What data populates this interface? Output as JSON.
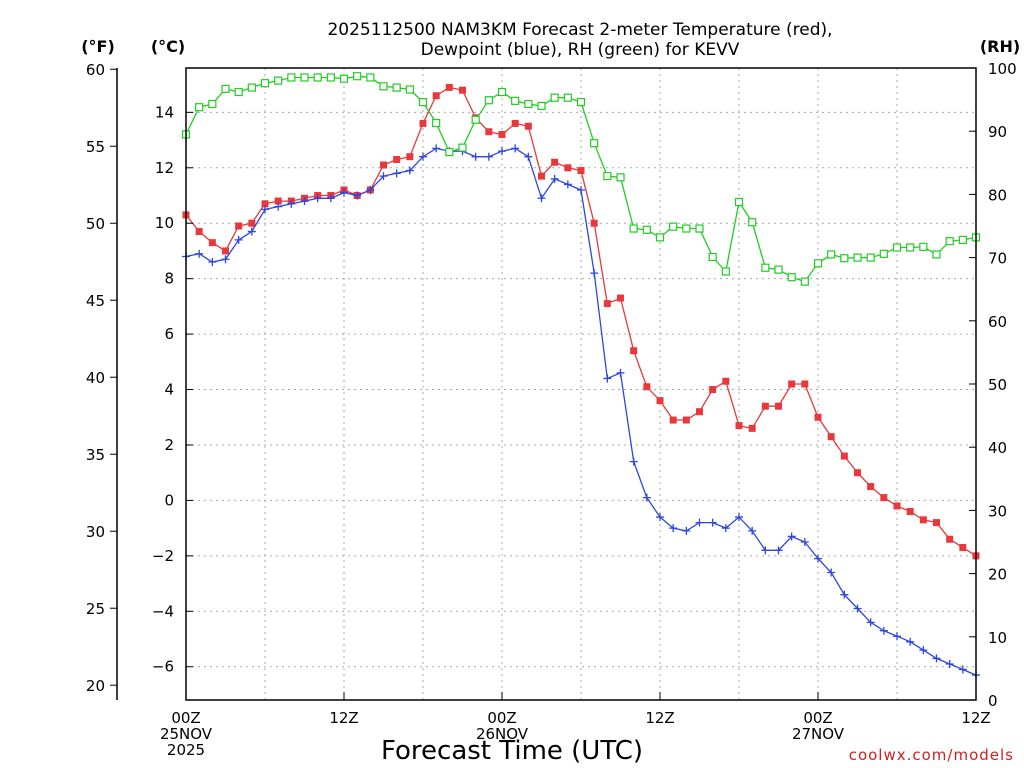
{
  "chart_data": {
    "type": "line",
    "title_line1": "2025112500 NAM3KM Forecast 2-meter Temperature (red),",
    "title_line2": "Dewpoint (blue), RH (green) for KEVV",
    "xlabel": "Forecast Time (UTC)",
    "credit": "coolwx.com/models",
    "units": {
      "fahrenheit": "(°F)",
      "celsius": "(°C)",
      "rh": "(RH)"
    },
    "x_range_hours": [
      0,
      60
    ],
    "celsius_range": [
      -7.2,
      15.6
    ],
    "fahrenheit_ticks": [
      20,
      25,
      30,
      35,
      40,
      45,
      50,
      55,
      60
    ],
    "celsius_ticks": [
      -6,
      -4,
      -2,
      0,
      2,
      4,
      6,
      8,
      10,
      12,
      14
    ],
    "rh_range": [
      0,
      100
    ],
    "rh_ticks": [
      0,
      10,
      20,
      30,
      40,
      50,
      60,
      70,
      80,
      90,
      100
    ],
    "x_ticks": [
      {
        "hour": 0,
        "lines": [
          "00Z",
          "25NOV",
          "2025"
        ]
      },
      {
        "hour": 12,
        "lines": [
          "12Z"
        ]
      },
      {
        "hour": 24,
        "lines": [
          "00Z",
          "26NOV"
        ]
      },
      {
        "hour": 36,
        "lines": [
          "12Z"
        ]
      },
      {
        "hour": 48,
        "lines": [
          "00Z",
          "27NOV"
        ]
      },
      {
        "hour": 60,
        "lines": [
          "12Z"
        ]
      }
    ],
    "colors": {
      "temperature": "#e8383c",
      "dewpoint": "#2e46e0",
      "rh": "#22cc22",
      "grid": "#aaaaaa"
    },
    "series": [
      {
        "name": "Temperature",
        "axis": "celsius",
        "values": [
          10.3,
          9.7,
          9.3,
          9.0,
          9.9,
          10.0,
          10.7,
          10.8,
          10.8,
          10.9,
          11.0,
          11.0,
          11.2,
          11.0,
          11.2,
          12.1,
          12.3,
          12.4,
          13.6,
          14.6,
          14.9,
          14.8,
          13.8,
          13.3,
          13.2,
          13.6,
          13.5,
          11.7,
          12.2,
          12.0,
          11.9,
          10.0,
          7.1,
          7.3,
          5.4,
          4.1,
          3.6,
          2.9,
          2.9,
          3.2,
          4.0,
          4.3,
          2.7,
          2.6,
          3.4,
          3.4,
          4.2,
          4.2,
          3.0,
          2.3,
          1.6,
          1.0,
          0.5,
          0.1,
          -0.2,
          -0.4,
          -0.7,
          -0.8,
          -1.4,
          -1.7,
          -2.0
        ]
      },
      {
        "name": "Dewpoint",
        "axis": "celsius",
        "values": [
          8.8,
          8.9,
          8.6,
          8.7,
          9.4,
          9.7,
          10.5,
          10.6,
          10.7,
          10.8,
          10.9,
          10.9,
          11.1,
          11.0,
          11.2,
          11.7,
          11.8,
          11.9,
          12.4,
          12.7,
          12.6,
          12.6,
          12.4,
          12.4,
          12.6,
          12.7,
          12.4,
          10.9,
          11.6,
          11.4,
          11.2,
          8.2,
          4.4,
          4.6,
          1.4,
          0.1,
          -0.6,
          -1.0,
          -1.1,
          -0.8,
          -0.8,
          -1.0,
          -0.6,
          -1.1,
          -1.8,
          -1.8,
          -1.3,
          -1.5,
          -2.1,
          -2.6,
          -3.4,
          -3.9,
          -4.4,
          -4.7,
          -4.9,
          -5.1,
          -5.4,
          -5.7,
          -5.9,
          -6.1,
          -6.3
        ]
      },
      {
        "name": "RH",
        "axis": "rh",
        "values": [
          89.5,
          93.8,
          94.3,
          96.7,
          96.2,
          96.9,
          97.6,
          98.0,
          98.5,
          98.5,
          98.5,
          98.5,
          98.3,
          98.7,
          98.5,
          97.1,
          96.9,
          96.6,
          94.6,
          91.3,
          86.7,
          87.4,
          91.8,
          94.9,
          96.2,
          94.8,
          94.3,
          94.0,
          95.3,
          95.3,
          94.6,
          88.1,
          82.9,
          82.7,
          74.6,
          74.4,
          73.2,
          74.9,
          74.6,
          74.6,
          70.1,
          67.8,
          78.8,
          75.6,
          68.4,
          68.1,
          66.9,
          66.2,
          69.1,
          70.5,
          69.9,
          70.0,
          70.0,
          70.6,
          71.6,
          71.6,
          71.7,
          70.5,
          72.6,
          72.8,
          73.2
        ]
      }
    ]
  }
}
